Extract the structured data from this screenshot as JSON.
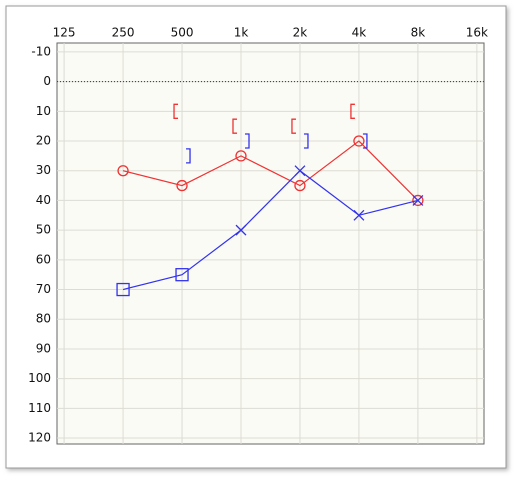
{
  "chart_data": {
    "type": "audiogram",
    "xscale": "log",
    "xlim": [
      115,
      17400
    ],
    "xticks": [
      125,
      250,
      {
        "value": 500,
        "label": "500"
      },
      {
        "value": 1000,
        "label": "1k"
      },
      {
        "value": 2000,
        "label": "2k"
      },
      {
        "value": 4000,
        "label": "4k"
      },
      {
        "value": 8000,
        "label": "8k"
      },
      {
        "value": 16000,
        "label": "16k"
      }
    ],
    "ylim": [
      -13,
      122
    ],
    "yticks": [
      -10,
      0,
      10,
      20,
      30,
      40,
      50,
      60,
      70,
      80,
      90,
      100,
      110,
      120
    ],
    "grid": true,
    "reference_line": 0,
    "series": [
      {
        "color": "#ee3333",
        "marker": "circle",
        "line": true,
        "x": [
          250,
          500,
          1000,
          2000,
          4000,
          8000
        ],
        "values": [
          30,
          35,
          25,
          35,
          20,
          40
        ]
      },
      {
        "color": "#3333ee",
        "markers": [
          "square",
          "square",
          "x",
          "x",
          "x",
          "x"
        ],
        "line": true,
        "x": [
          250,
          500,
          1000,
          2000,
          4000,
          8000
        ],
        "values": [
          70,
          65,
          50,
          30,
          45,
          40
        ]
      },
      {
        "color": "#ee3333",
        "marker": "bracket-left",
        "line": false,
        "x": [
          500,
          1000,
          2000,
          4000
        ],
        "values": [
          10,
          15,
          15,
          10
        ]
      },
      {
        "color": "#3333ee",
        "marker": "bracket-right",
        "line": false,
        "x": [
          500,
          1000,
          2000,
          4000
        ],
        "values": [
          25,
          20,
          20,
          20
        ]
      }
    ]
  }
}
